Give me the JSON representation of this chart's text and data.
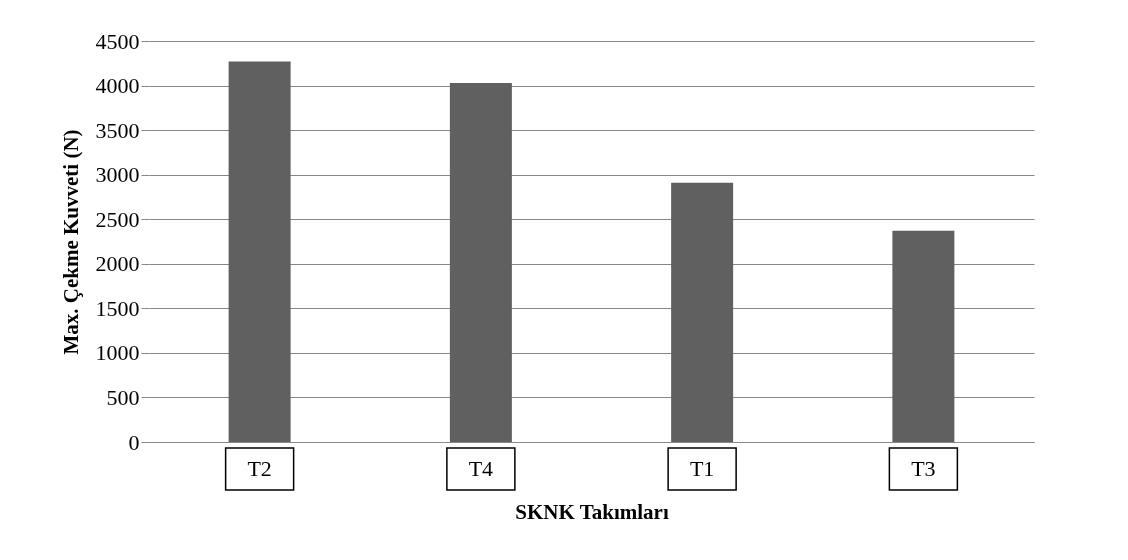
{
  "chart_data": {
    "type": "bar",
    "xlabel": "SKNK Takımları",
    "ylabel": "Max. Çekme Kuvveti (N)",
    "categories": [
      "T2",
      "T4",
      "T1",
      "T3"
    ],
    "values": [
      4270,
      4030,
      2910,
      2370
    ],
    "color": "#606060",
    "ylim": [
      0,
      4500
    ],
    "yticks": [
      0,
      500,
      1000,
      1500,
      2000,
      2500,
      3000,
      3500,
      4000,
      4500
    ],
    "grid": "y"
  }
}
